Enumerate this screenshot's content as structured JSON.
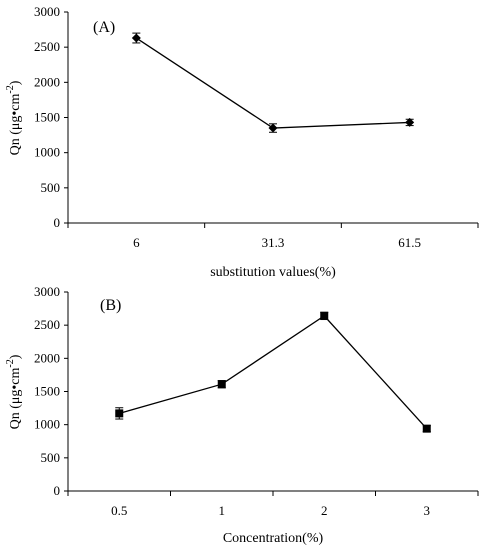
{
  "chart_data": [
    {
      "type": "line",
      "panel_label": "(A)",
      "xlabel": "substitution values(%)",
      "ylabel_main": "Qn (μg•cm",
      "ylabel_sup": "-2",
      "ylabel_close": ")",
      "categories": [
        "6",
        "31.3",
        "61.5"
      ],
      "series": [
        {
          "values": [
            2630,
            1350,
            1430
          ],
          "errors": [
            70,
            60,
            45
          ]
        }
      ],
      "ylim": [
        0,
        3000
      ],
      "yticks": [
        "0",
        "500",
        "1000",
        "1500",
        "2000",
        "2500",
        "3000"
      ],
      "marker": "diamond",
      "grid": false
    },
    {
      "type": "line",
      "panel_label": "(B)",
      "xlabel": "Concentration(%)",
      "ylabel_main": "Qn (μg•cm",
      "ylabel_sup": "-2",
      "ylabel_close": ")",
      "categories": [
        "0.5",
        "1",
        "2",
        "3"
      ],
      "series": [
        {
          "values": [
            1170,
            1610,
            2640,
            940
          ],
          "errors": [
            85,
            55,
            55,
            45
          ]
        }
      ],
      "ylim": [
        0,
        3000
      ],
      "yticks": [
        "0",
        "500",
        "1000",
        "1500",
        "2000",
        "2500",
        "3000"
      ],
      "marker": "square",
      "grid": false
    }
  ]
}
